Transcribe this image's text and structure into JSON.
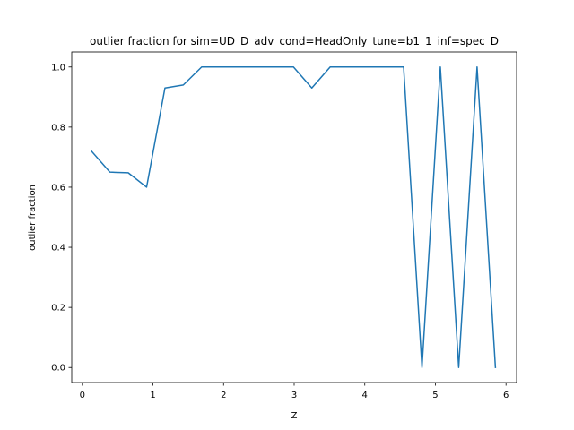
{
  "chart_data": {
    "type": "line",
    "title": "outlier fraction for sim=UD_D_adv_cond=HeadOnly_tune=b1_1_inf=spec_D",
    "xlabel": "Z",
    "ylabel": "outlier fraction",
    "xlim": [
      -0.15,
      6.15
    ],
    "ylim": [
      -0.05,
      1.05
    ],
    "xticks": [
      0,
      1,
      2,
      3,
      4,
      5,
      6
    ],
    "xtick_labels": [
      "0",
      "1",
      "2",
      "3",
      "4",
      "5",
      "6"
    ],
    "yticks": [
      0.0,
      0.2,
      0.4,
      0.6,
      0.8,
      1.0
    ],
    "ytick_labels": [
      "0.0",
      "0.2",
      "0.4",
      "0.6",
      "0.8",
      "1.0"
    ],
    "grid": false,
    "series": [
      {
        "color": "#1f77b4",
        "x": [
          0.13,
          0.39,
          0.65,
          0.91,
          1.17,
          1.43,
          1.69,
          1.95,
          2.21,
          2.47,
          2.73,
          2.99,
          3.25,
          3.51,
          3.77,
          4.03,
          4.29,
          4.55,
          4.81,
          5.07,
          5.33,
          5.59,
          5.85
        ],
        "y": [
          0.72,
          0.65,
          0.648,
          0.6,
          0.93,
          0.94,
          1.0,
          1.0,
          1.0,
          1.0,
          1.0,
          1.0,
          0.93,
          1.0,
          1.0,
          1.0,
          1.0,
          1.0,
          0.0,
          1.0,
          0.0,
          1.0,
          0.0
        ]
      }
    ]
  }
}
